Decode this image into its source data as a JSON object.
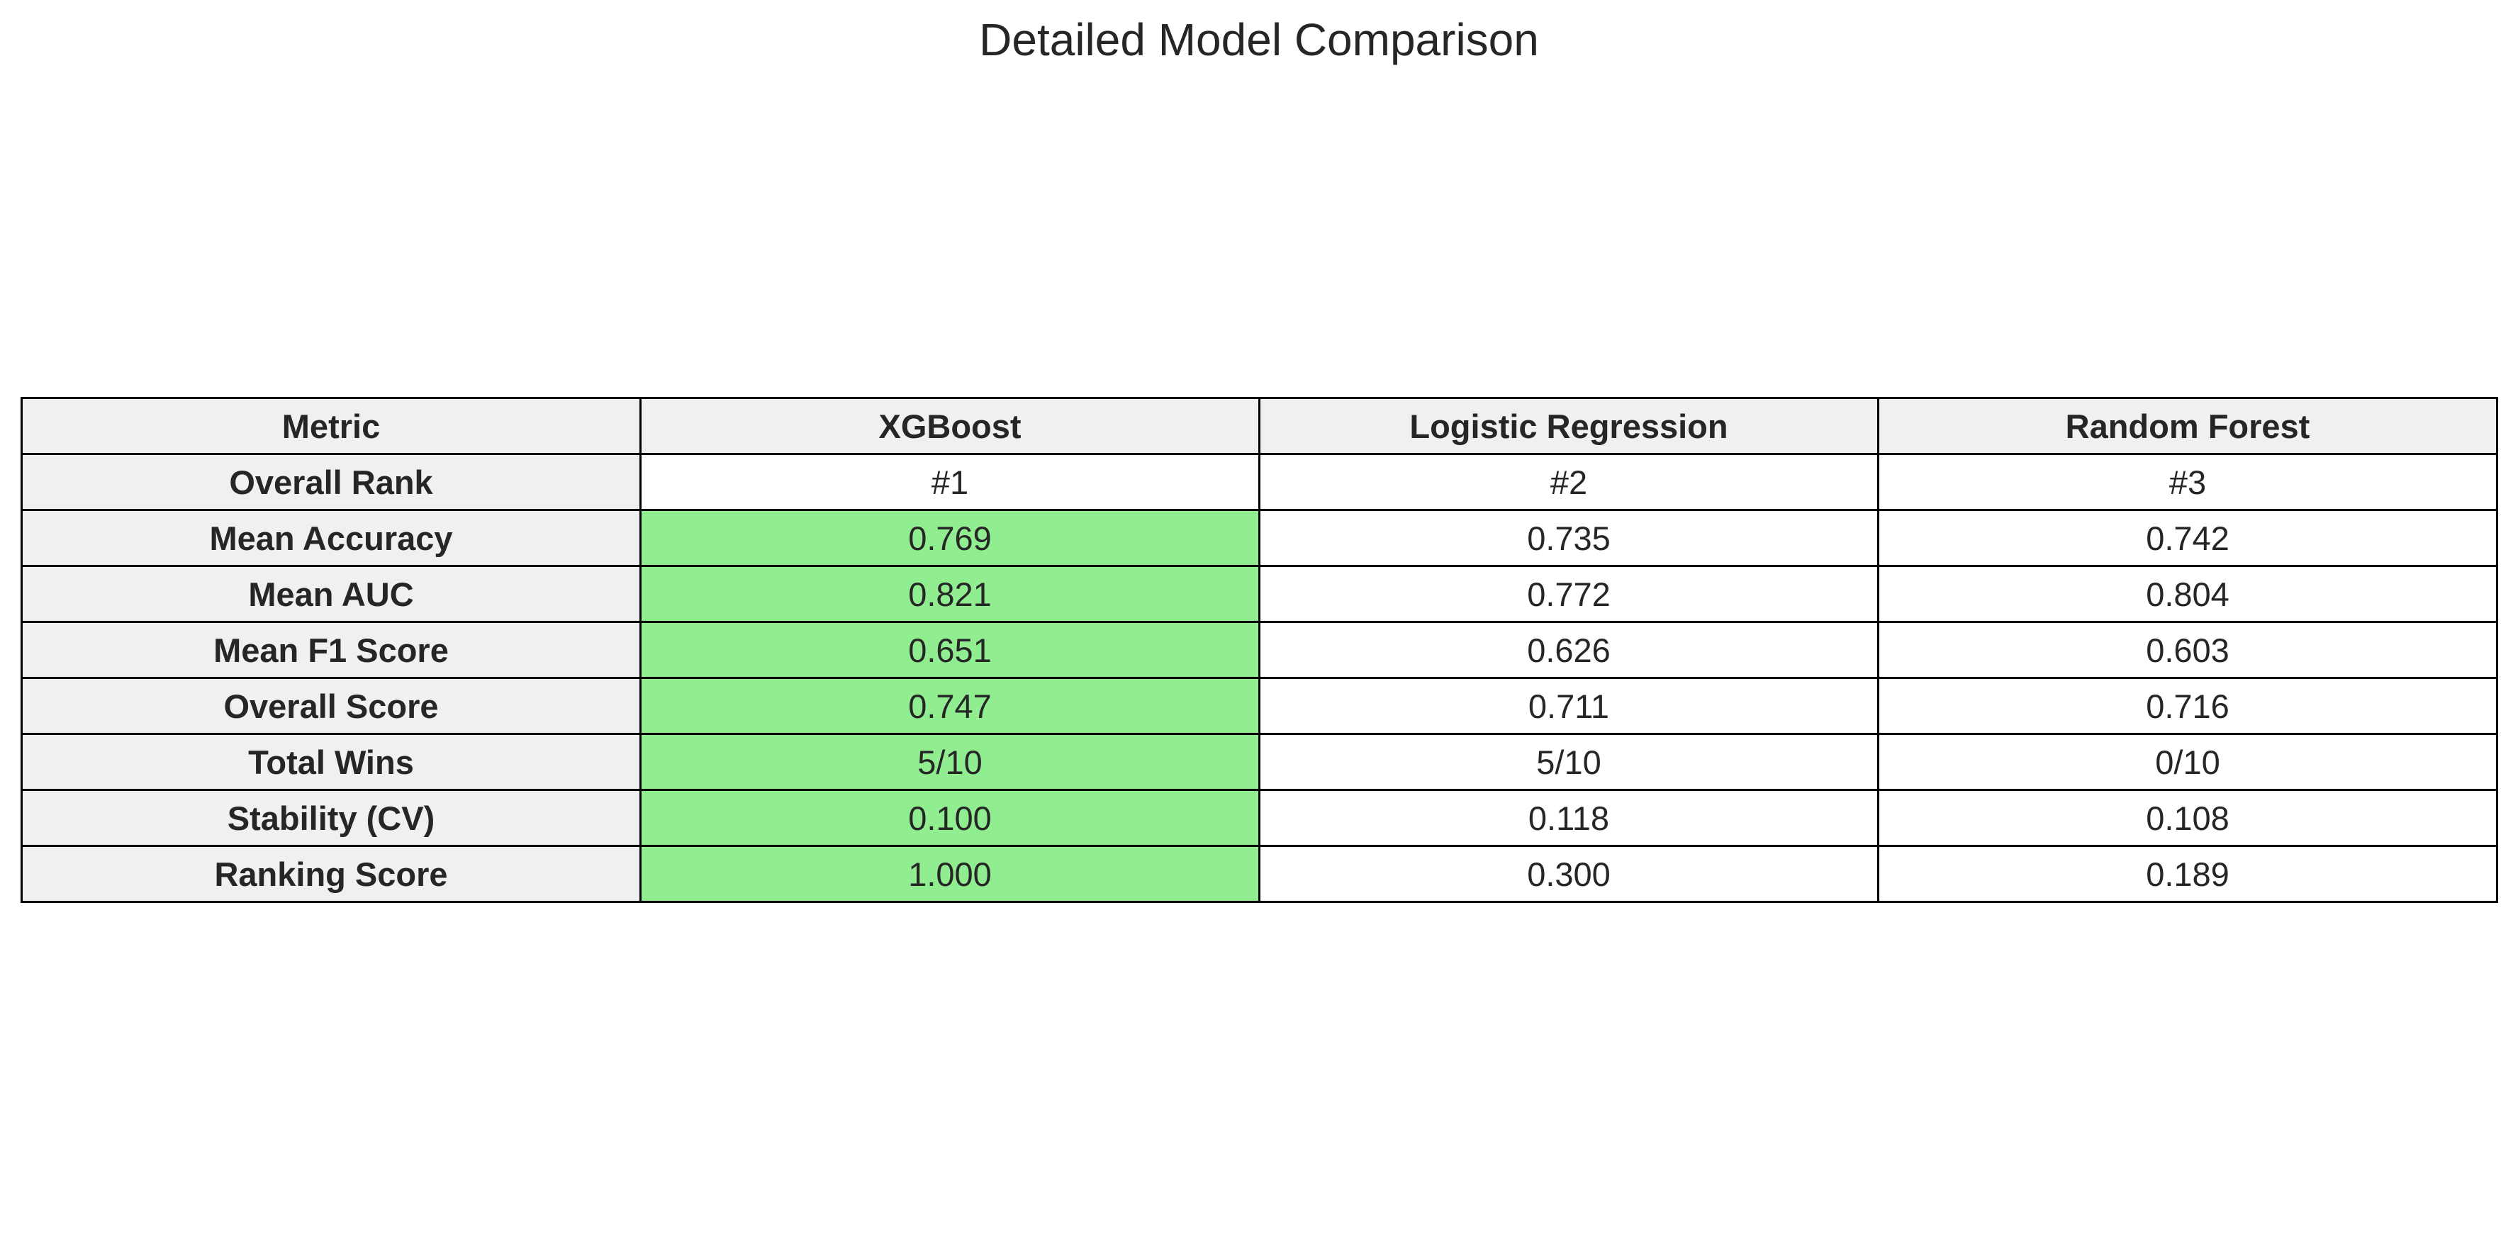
{
  "chart_data": {
    "type": "table",
    "title": "Detailed Model Comparison",
    "columns": [
      "Metric",
      "XGBoost",
      "Logistic Regression",
      "Random Forest"
    ],
    "rows": [
      {
        "metric": "Overall Rank",
        "values": [
          "#1",
          "#2",
          "#3"
        ],
        "highlight": null
      },
      {
        "metric": "Mean Accuracy",
        "values": [
          "0.769",
          "0.735",
          "0.742"
        ],
        "highlight": 0
      },
      {
        "metric": "Mean AUC",
        "values": [
          "0.821",
          "0.772",
          "0.804"
        ],
        "highlight": 0
      },
      {
        "metric": "Mean F1 Score",
        "values": [
          "0.651",
          "0.626",
          "0.603"
        ],
        "highlight": 0
      },
      {
        "metric": "Overall Score",
        "values": [
          "0.747",
          "0.711",
          "0.716"
        ],
        "highlight": 0
      },
      {
        "metric": "Total Wins",
        "values": [
          "5/10",
          "5/10",
          "0/10"
        ],
        "highlight": 0
      },
      {
        "metric": "Stability (CV)",
        "values": [
          "0.100",
          "0.118",
          "0.108"
        ],
        "highlight": 0
      },
      {
        "metric": "Ranking Score",
        "values": [
          "1.000",
          "0.300",
          "0.189"
        ],
        "highlight": 0
      }
    ],
    "colors": {
      "header_background": "#f0f0f0",
      "label_background": "#f0f0f0",
      "highlight": "#90ee90",
      "cell_background": "#ffffff",
      "border": "#000000"
    }
  }
}
